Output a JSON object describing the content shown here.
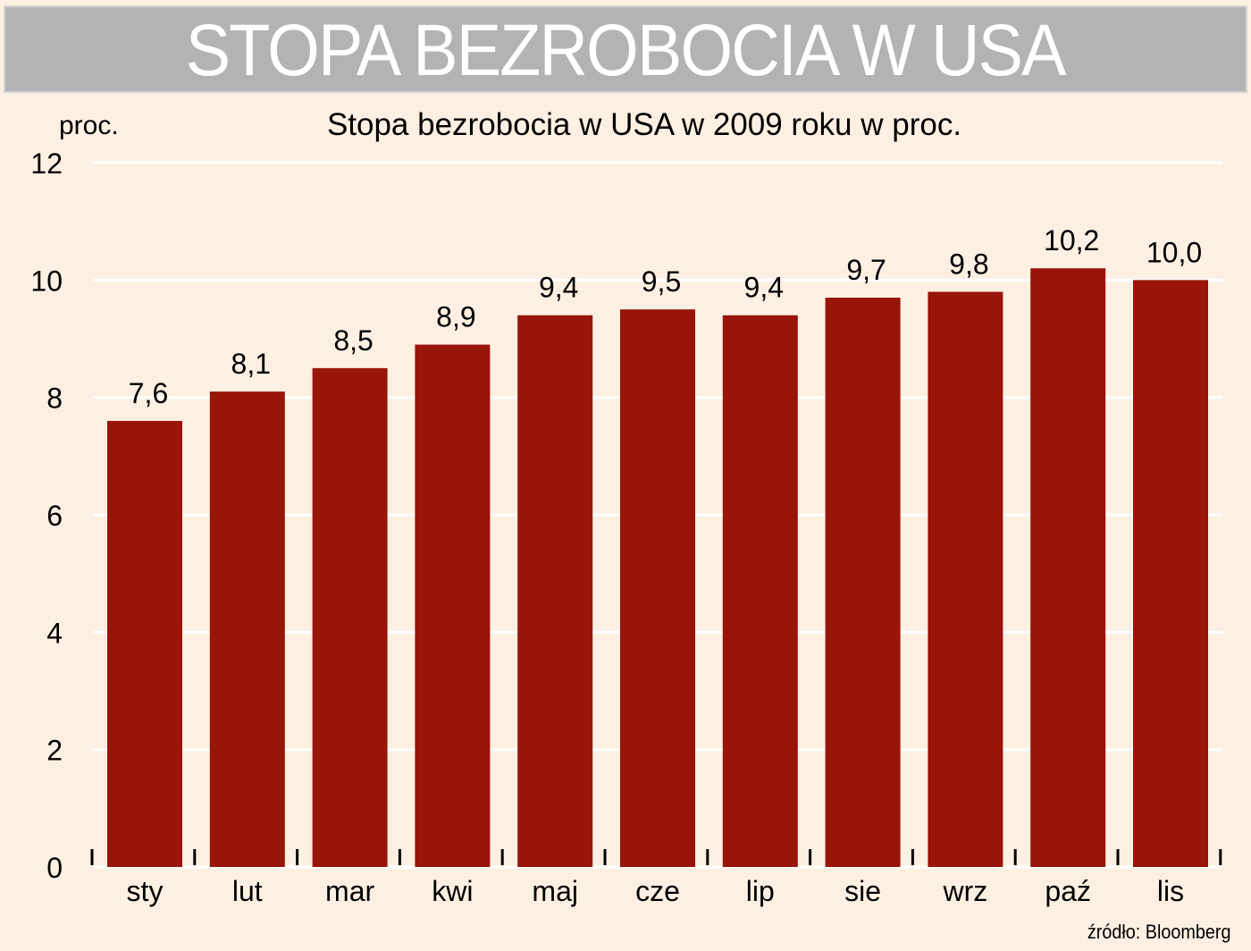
{
  "header": {
    "banner_title": "STOPA BEZROBOCIA W USA"
  },
  "chart": {
    "unit_label": "proc.",
    "source": "źródło: Bloomberg"
  },
  "colors": {
    "background": "#fdf0e2",
    "banner": "#b3b3b3",
    "bar": "#991409",
    "gridline": "#ffffff"
  },
  "chart_data": {
    "type": "bar",
    "title": "Stopa bezrobocia w USA w 2009 roku w proc.",
    "xlabel": "",
    "ylabel": "proc.",
    "categories": [
      "sty",
      "lut",
      "mar",
      "kwi",
      "maj",
      "cze",
      "lip",
      "sie",
      "wrz",
      "paź",
      "lis"
    ],
    "values": [
      7.6,
      8.1,
      8.5,
      8.9,
      9.4,
      9.5,
      9.4,
      9.7,
      9.8,
      10.2,
      10.0
    ],
    "value_labels": [
      "7,6",
      "8,1",
      "8,5",
      "8,9",
      "9,4",
      "9,5",
      "9,4",
      "9,7",
      "9,8",
      "10,2",
      "10,0"
    ],
    "ylim": [
      0,
      12
    ],
    "yticks": [
      0,
      2,
      4,
      6,
      8,
      10,
      12
    ],
    "grid": true,
    "legend": "none"
  }
}
